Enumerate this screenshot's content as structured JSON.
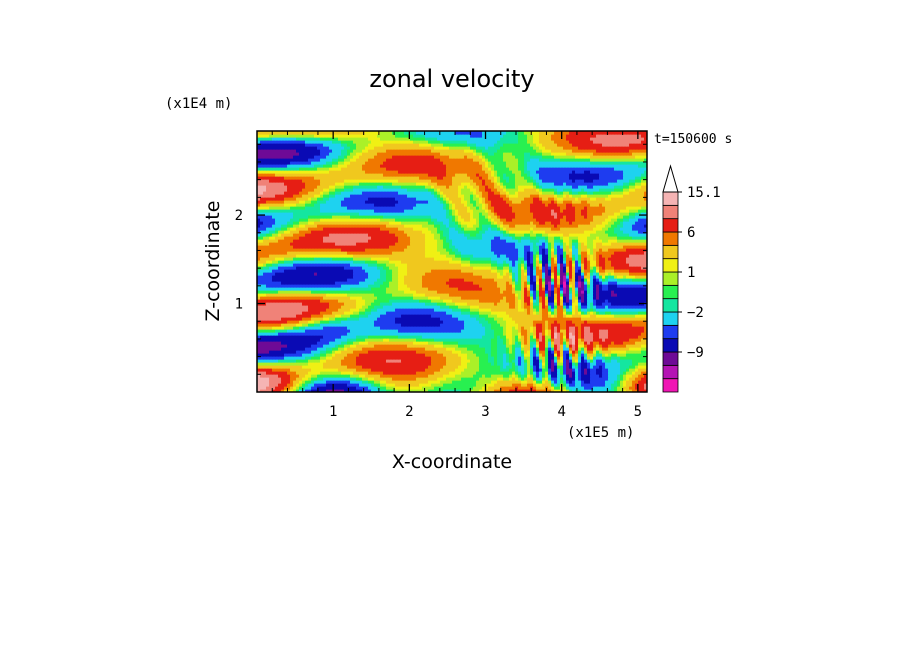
{
  "chart_data": {
    "type": "heatmap",
    "title": "zonal velocity",
    "xlabel": "X-coordinate",
    "ylabel": "Z-coordinate",
    "x_multiplier_label": "(x1E5 m)",
    "y_multiplier_label": "(x1E4 m)",
    "time_label": "t=150600 s",
    "xlim": [
      0,
      5.12
    ],
    "ylim": [
      0,
      2.95
    ],
    "x_ticks": [
      1,
      2,
      3,
      4,
      5
    ],
    "x_tick_labels": [
      "1",
      "2",
      "3",
      "4",
      "5"
    ],
    "y_ticks": [
      1,
      2
    ],
    "y_tick_labels": [
      "1",
      "2"
    ],
    "colorbar": {
      "levels": [
        -15,
        -12,
        -9,
        -6,
        -4,
        -2,
        -1,
        0,
        1,
        2,
        4,
        6,
        9,
        12,
        15.1
      ],
      "labeled_values": [
        15.1,
        6,
        1,
        -2,
        -9
      ],
      "labels": [
        "15.1",
        "6",
        "1",
        "−2",
        "−9"
      ],
      "colors": [
        "#f016b4",
        "#b414b4",
        "#6e0a96",
        "#0a0ab4",
        "#1e3cf0",
        "#1ed2f0",
        "#14e6a0",
        "#28f050",
        "#aaf028",
        "#f0f014",
        "#f0c81e",
        "#f07800",
        "#e61e14",
        "#f08278",
        "#f5b4b4",
        "#ffffff"
      ],
      "extend": "max"
    },
    "grid": false
  }
}
